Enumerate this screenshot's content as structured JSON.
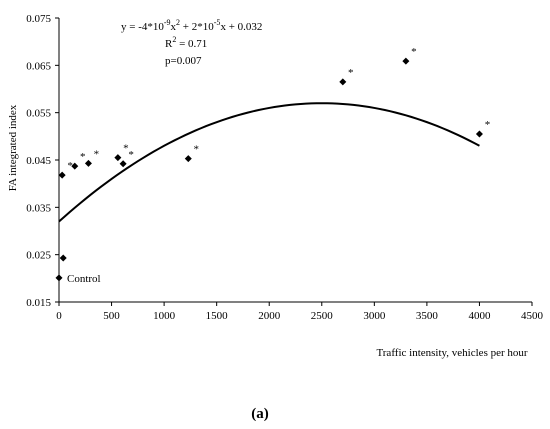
{
  "chart_data": {
    "type": "scatter",
    "xlabel": "Traffic intensity, vehicles per hour",
    "ylabel": "FA integrated index",
    "xlim": [
      0,
      4500
    ],
    "ylim": [
      0.015,
      0.075
    ],
    "x_ticks": [
      "0",
      "500",
      "1000",
      "1500",
      "2000",
      "2500",
      "3000",
      "3500",
      "4000",
      "4500"
    ],
    "y_ticks": [
      "0.015",
      "0.025",
      "0.035",
      "0.045",
      "0.055",
      "0.065",
      "0.075"
    ],
    "grid": false,
    "points": [
      {
        "x": 0,
        "y": 0.0201,
        "label": "Control"
      },
      {
        "x": 30,
        "y": 0.0418,
        "star": true
      },
      {
        "x": 40,
        "y": 0.0243
      },
      {
        "x": 150,
        "y": 0.0437,
        "star": true
      },
      {
        "x": 280,
        "y": 0.0443,
        "star": true
      },
      {
        "x": 560,
        "y": 0.0455,
        "star": true
      },
      {
        "x": 610,
        "y": 0.0442,
        "star": true
      },
      {
        "x": 1230,
        "y": 0.0453,
        "star": true
      },
      {
        "x": 2700,
        "y": 0.0615,
        "star": true
      },
      {
        "x": 3300,
        "y": 0.0659,
        "star": true
      },
      {
        "x": 4000,
        "y": 0.0505,
        "star": true
      }
    ],
    "star_symbol": "*",
    "trendline": {
      "a": -4e-09,
      "b": 2e-05,
      "c": 0.032,
      "x_range": [
        0,
        4000
      ]
    },
    "equation": {
      "line1": {
        "pre": "y = -4*10",
        "sup1": "-9",
        "mid": "x",
        "sup2": "2",
        "post": " + 2*10",
        "sup3": "-5",
        "end": "x + 0.032"
      },
      "line2": {
        "pre": "R",
        "sup": "2",
        "post": " = 0.71"
      },
      "line3": "p=0.007"
    }
  },
  "caption": "(a)"
}
